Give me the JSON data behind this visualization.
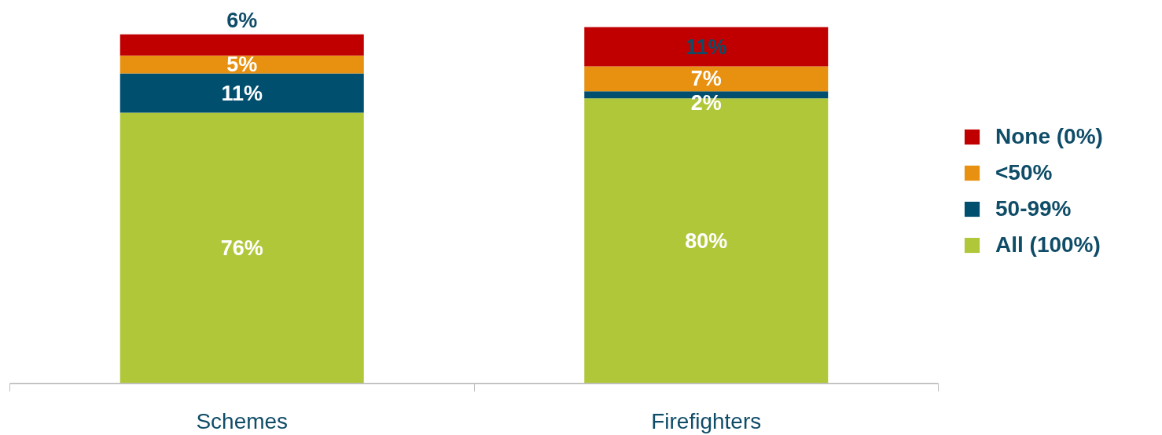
{
  "chart_data": {
    "type": "bar",
    "stacked": true,
    "categories": [
      "Schemes",
      "Firefighters"
    ],
    "series": [
      {
        "name": "All (100%)",
        "color": "#b0c73a",
        "values": [
          76,
          80
        ],
        "value_labels": [
          "76%",
          "80%"
        ]
      },
      {
        "name": "50-99%",
        "color": "#004f6e",
        "values": [
          11,
          2
        ],
        "value_labels": [
          "11%",
          "2%"
        ]
      },
      {
        "name": "<50%",
        "color": "#e8900f",
        "values": [
          5,
          7
        ],
        "value_labels": [
          "5%",
          "7%"
        ]
      },
      {
        "name": "None (0%)",
        "color": "#c00000",
        "values": [
          6,
          11
        ],
        "value_labels": [
          "6%",
          "11%"
        ]
      }
    ],
    "legend": "right",
    "grid": false
  }
}
